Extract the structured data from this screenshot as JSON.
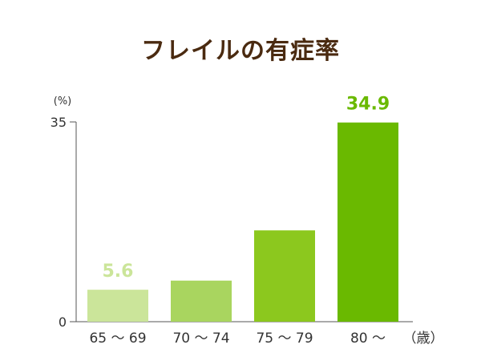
{
  "chart_data": {
    "type": "bar",
    "title": "フレイルの有症率",
    "categories": [
      "65 〜 69",
      "70 〜 74",
      "75 〜 79",
      "80 〜"
    ],
    "values": [
      5.6,
      7.2,
      16.0,
      34.9
    ],
    "bar_colors": [
      "#cbe59a",
      "#a9d55f",
      "#8cc81e",
      "#6ab900"
    ],
    "data_labels": [
      {
        "index": 0,
        "text": "5.6",
        "color": "#cbe59a"
      },
      {
        "index": 3,
        "text": "34.9",
        "color": "#6ab900"
      }
    ],
    "ylabel": "(%)",
    "xlabel": "（歳）",
    "ylim": [
      0,
      35
    ],
    "y_ticks": [
      0,
      35
    ],
    "grid": false
  }
}
